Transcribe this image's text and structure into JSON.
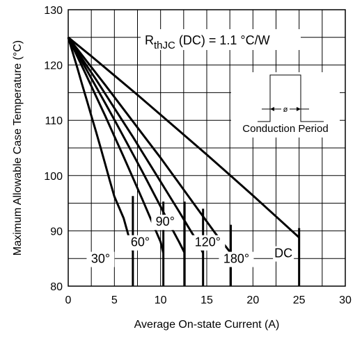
{
  "chart_data": {
    "type": "line",
    "title": "",
    "xlabel": "Average On-state Current (A)",
    "ylabel": "Maximum Allowable Case Temperature (°C)",
    "xlim": [
      0,
      30
    ],
    "ylim": [
      80,
      130
    ],
    "x_ticks": [
      "0",
      "5",
      "10",
      "15",
      "20",
      "25",
      "30"
    ],
    "y_ticks": [
      "80",
      "90",
      "100",
      "110",
      "120",
      "130"
    ],
    "grid": true,
    "annotation": {
      "r_main": "R",
      "r_sub": "thJC",
      "r_rest": " (DC) = 1.1 °C/W",
      "diagram_label": "Conduction Period",
      "diagram_symbol": "ø"
    },
    "series": [
      {
        "name": "30°",
        "points": [
          [
            0,
            125
          ],
          [
            0.5,
            122.2
          ],
          [
            1,
            119.4
          ],
          [
            1.5,
            116.5
          ],
          [
            2,
            113.7
          ],
          [
            2.5,
            110.8
          ],
          [
            3,
            108.0
          ],
          [
            3.5,
            105.1
          ],
          [
            4,
            102.1
          ],
          [
            4.5,
            99.1
          ],
          [
            5,
            96.2
          ],
          [
            6,
            92.3
          ],
          [
            7,
            86.3
          ]
        ]
      },
      {
        "name": "60°",
        "points": [
          [
            0,
            125
          ],
          [
            1,
            121.5
          ],
          [
            2,
            118.0
          ],
          [
            3,
            114.4
          ],
          [
            4,
            110.8
          ],
          [
            5,
            107.1
          ],
          [
            6,
            103.4
          ],
          [
            7,
            99.6
          ],
          [
            8,
            95.8
          ],
          [
            9,
            91.9
          ],
          [
            10,
            88.0
          ],
          [
            10.3,
            86.0
          ]
        ]
      },
      {
        "name": "90°",
        "points": [
          [
            0,
            125
          ],
          [
            1,
            122.1
          ],
          [
            2,
            119.1
          ],
          [
            3,
            116.1
          ],
          [
            4,
            113.1
          ],
          [
            5,
            110.1
          ],
          [
            6,
            107.0
          ],
          [
            7,
            103.9
          ],
          [
            8,
            100.8
          ],
          [
            9,
            97.6
          ],
          [
            10,
            94.4
          ],
          [
            11,
            91.1
          ],
          [
            12,
            88.0
          ],
          [
            12.6,
            86.0
          ]
        ]
      },
      {
        "name": "120°",
        "points": [
          [
            0,
            125
          ],
          [
            1,
            122.4
          ],
          [
            2,
            119.9
          ],
          [
            3,
            117.4
          ],
          [
            4,
            114.8
          ],
          [
            5,
            112.2
          ],
          [
            6,
            109.6
          ],
          [
            7,
            107.0
          ],
          [
            8,
            104.3
          ],
          [
            9,
            101.6
          ],
          [
            10,
            98.9
          ],
          [
            11,
            96.2
          ],
          [
            12,
            93.5
          ],
          [
            13,
            90.7
          ],
          [
            14,
            88.0
          ],
          [
            14.6,
            86.0
          ]
        ]
      },
      {
        "name": "180°",
        "points": [
          [
            0,
            125
          ],
          [
            2,
            120.7
          ],
          [
            4,
            116.4
          ],
          [
            6,
            112.0
          ],
          [
            8,
            107.6
          ],
          [
            10,
            103.2
          ],
          [
            12,
            98.6
          ],
          [
            14,
            94.0
          ],
          [
            16,
            89.4
          ],
          [
            17.6,
            86.0
          ]
        ]
      },
      {
        "name": "DC",
        "points": [
          [
            0,
            125
          ],
          [
            2.5,
            121.6
          ],
          [
            5,
            118.1
          ],
          [
            7.5,
            114.6
          ],
          [
            10,
            111.0
          ],
          [
            12.5,
            107.4
          ],
          [
            15,
            103.8
          ],
          [
            17.5,
            100.1
          ],
          [
            20,
            96.4
          ],
          [
            22.5,
            92.6
          ],
          [
            25,
            88.8
          ]
        ]
      }
    ],
    "drop_lines": [
      {
        "x": 7.0,
        "from": 96.3,
        "to": 80
      },
      {
        "x": 10.3,
        "from": 95.3,
        "to": 80
      },
      {
        "x": 12.6,
        "from": 95.3,
        "to": 80
      },
      {
        "x": 14.6,
        "from": 94.0,
        "to": 80
      },
      {
        "x": 17.6,
        "from": 91.1,
        "to": 80
      },
      {
        "x": 25.0,
        "from": 90.5,
        "to": 80
      }
    ]
  }
}
